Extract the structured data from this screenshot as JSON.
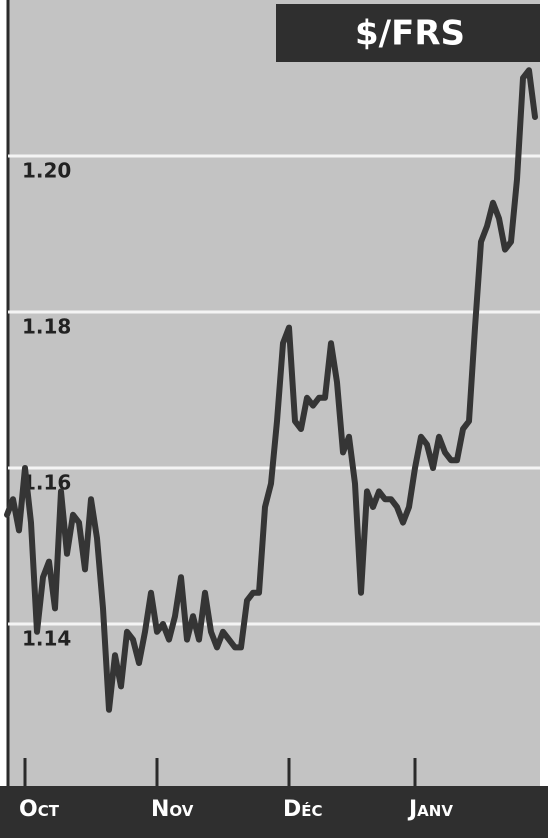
{
  "chart_data": {
    "type": "line",
    "title": "$/FRS",
    "categories": [
      null,
      null,
      null,
      "Oct",
      null,
      null,
      null,
      null,
      null,
      null,
      null,
      null,
      null,
      null,
      null,
      null,
      null,
      null,
      null,
      null,
      null,
      null,
      null,
      null,
      null,
      "Nov",
      null,
      null,
      null,
      null,
      null,
      null,
      null,
      null,
      null,
      null,
      null,
      null,
      null,
      null,
      null,
      null,
      null,
      null,
      null,
      null,
      null,
      "Déc",
      null,
      null,
      null,
      null,
      null,
      null,
      null,
      null,
      null,
      null,
      null,
      null,
      null,
      null,
      null,
      null,
      null,
      null,
      null,
      null,
      "Janv",
      null,
      null,
      null,
      null,
      null,
      null,
      null,
      null,
      null,
      null,
      null,
      null,
      null,
      null,
      null,
      null,
      null,
      null,
      null,
      null
    ],
    "series": [
      {
        "color": "#353535",
        "values": [
          1.154,
          1.156,
          1.152,
          1.16,
          1.153,
          1.139,
          1.146,
          1.148,
          1.142,
          1.157,
          1.149,
          1.154,
          1.153,
          1.147,
          1.156,
          1.151,
          1.142,
          1.129,
          1.136,
          1.132,
          1.139,
          1.138,
          1.135,
          1.139,
          1.144,
          1.139,
          1.14,
          1.138,
          1.141,
          1.146,
          1.138,
          1.141,
          1.138,
          1.144,
          1.139,
          1.137,
          1.139,
          1.138,
          1.137,
          1.137,
          1.143,
          1.144,
          1.144,
          1.155,
          1.158,
          1.166,
          1.176,
          1.178,
          1.166,
          1.165,
          1.169,
          1.168,
          1.169,
          1.169,
          1.176,
          1.171,
          1.162,
          1.164,
          1.158,
          1.144,
          1.157,
          1.155,
          1.157,
          1.156,
          1.156,
          1.155,
          1.153,
          1.155,
          1.16,
          1.164,
          1.163,
          1.16,
          1.164,
          1.162,
          1.161,
          1.161,
          1.165,
          1.166,
          1.178,
          1.189,
          1.191,
          1.194,
          1.192,
          1.188,
          1.189,
          1.197,
          1.21,
          1.211,
          1.205
        ]
      }
    ],
    "ylim": [
      1.12,
      1.22
    ],
    "yticks": [
      1.14,
      1.16,
      1.18,
      {
        "value": 1.2,
        "label": "1.20"
      }
    ],
    "grid": true
  }
}
